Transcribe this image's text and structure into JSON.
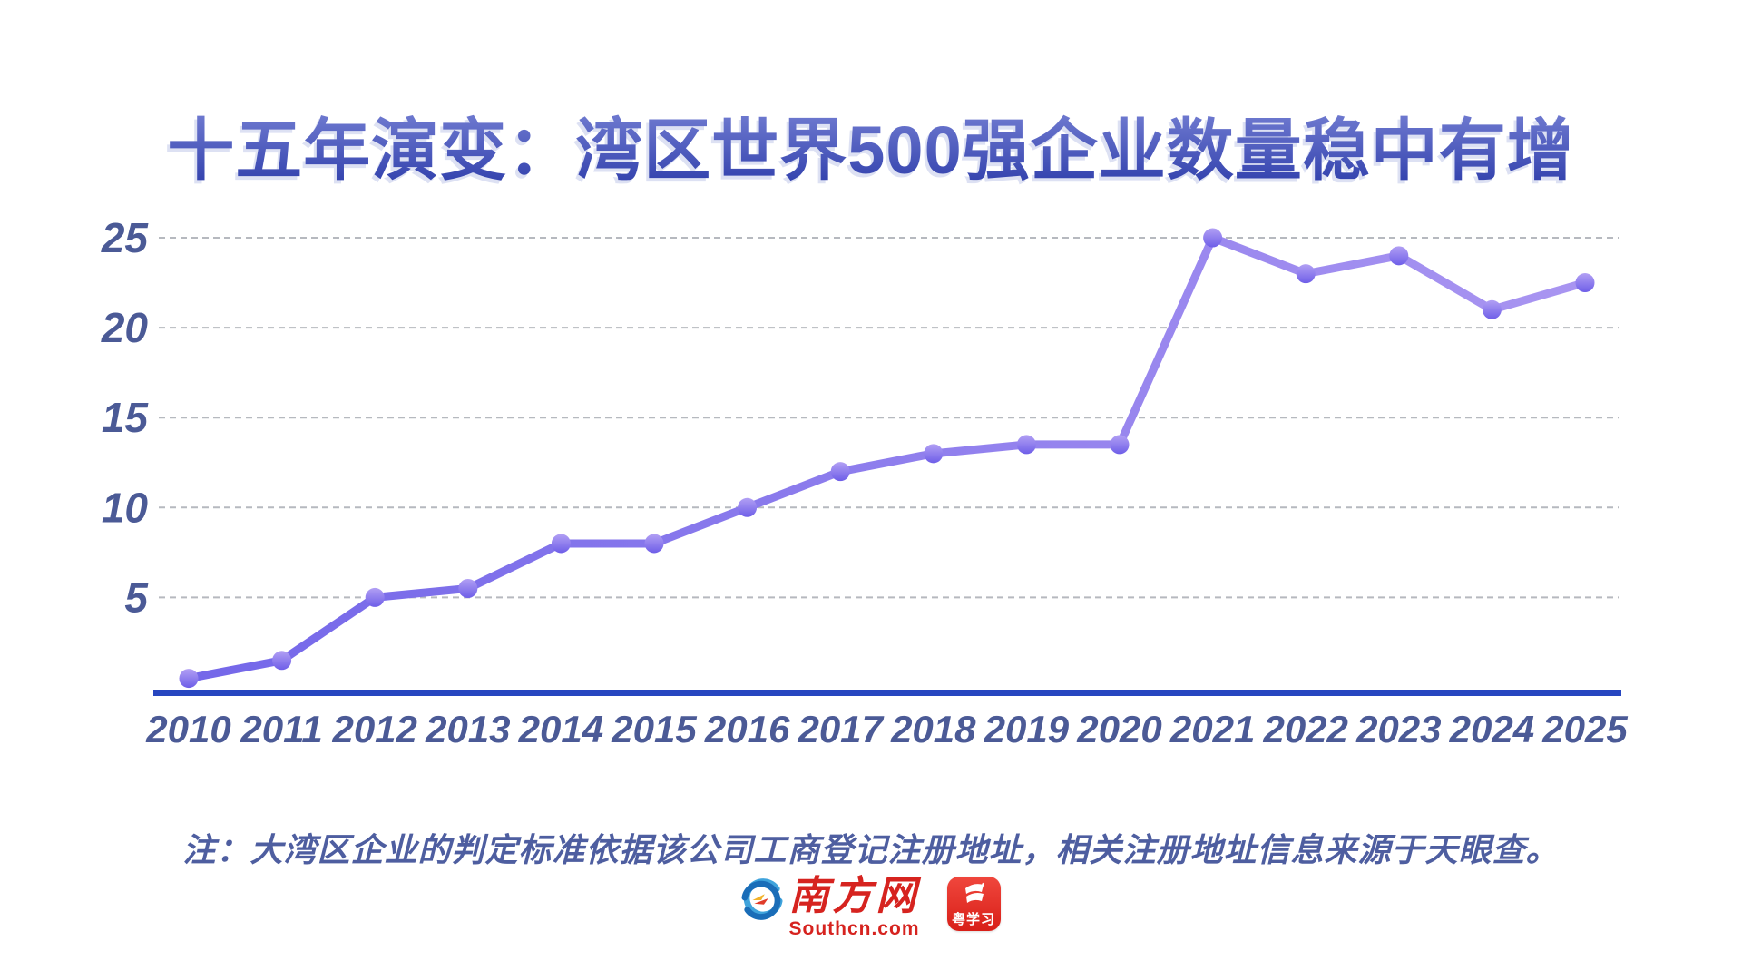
{
  "title": "十五年演变：湾区世界500强企业数量稳中有增",
  "note": "注：大湾区企业的判定标准依据该公司工商登记注册地址，相关注册地址信息来源于天眼查。",
  "footer": {
    "southcn_name": "南方网",
    "southcn_domain": "Southcn.com",
    "yuexuexi_name": "粤学习"
  },
  "colors": {
    "title_gradient_top": "#7d87d8",
    "title_gradient_bottom": "#3443ae",
    "axis_line": "#2746c0",
    "line_gradient_left": "#7467e9",
    "line_gradient_right": "#a995f1",
    "marker_top": "#b2a0f4",
    "marker_bottom": "#6e5ee8",
    "gridline": "#b6b9bf",
    "tick_label": "#4b5a96",
    "note_text": "#4e5ea0",
    "logo_red": "#d6231f"
  },
  "chart_data": {
    "type": "line",
    "title": "十五年演变：湾区世界500强企业数量稳中有增",
    "x": [
      "2010",
      "2011",
      "2012",
      "2013",
      "2014",
      "2015",
      "2016",
      "2017",
      "2018",
      "2019",
      "2020",
      "2021",
      "2022",
      "2023",
      "2024",
      "2025"
    ],
    "series": [
      {
        "name": "湾区世界500强企业数量",
        "values": [
          0.5,
          1.5,
          5,
          5.5,
          8,
          8,
          10,
          12,
          13,
          13.5,
          13.5,
          25,
          23,
          24,
          21,
          22.5
        ]
      }
    ],
    "yticks": [
      5,
      10,
      15,
      20,
      25
    ],
    "ylim": [
      0,
      26
    ],
    "xlabel": "",
    "ylabel": "",
    "grid": "horizontal-dashed",
    "legend": "none",
    "markers": "circle"
  }
}
